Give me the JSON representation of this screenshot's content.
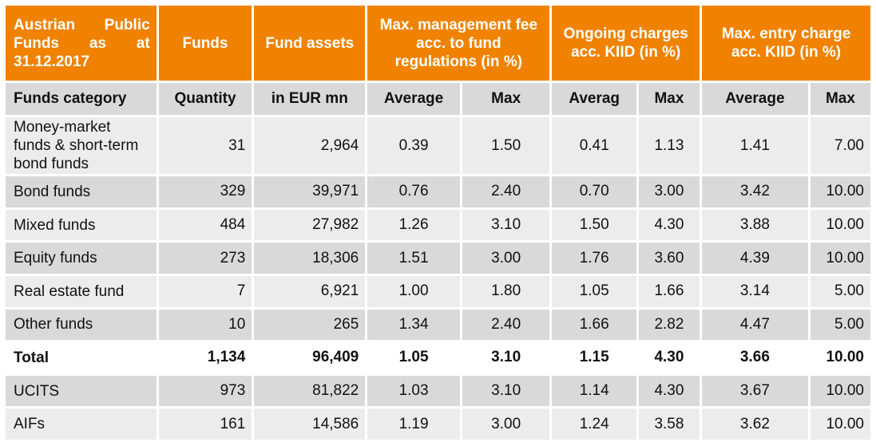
{
  "header": {
    "title": "Austrian Public Funds as at 31.12.2017",
    "funds": "Funds",
    "fund_assets": "Fund assets",
    "mgmt_fee": "Max. management fee acc. to fund regulations (in %)",
    "ongoing": "Ongoing charges acc. KIID (in %)",
    "entry": "Max. entry charge acc. KIID (in %)"
  },
  "subheader": {
    "category": "Funds category",
    "quantity": "Quantity",
    "assets_unit": "in EUR mn",
    "mgmt_avg": "Average",
    "mgmt_max": "Max",
    "ong_avg": "Averag",
    "ong_max": "Max",
    "entry_avg": "Average",
    "entry_max": "Max"
  },
  "rows": [
    {
      "category": "Money-market funds & short-term bond funds",
      "quantity": "31",
      "assets": "2,964",
      "mgmt_avg": "0.39",
      "mgmt_max": "1.50",
      "ong_avg": "0.41",
      "ong_max": "1.13",
      "entry_avg": "1.41",
      "entry_max": "7.00"
    },
    {
      "category": "Bond funds",
      "quantity": "329",
      "assets": "39,971",
      "mgmt_avg": "0.76",
      "mgmt_max": "2.40",
      "ong_avg": "0.70",
      "ong_max": "3.00",
      "entry_avg": "3.42",
      "entry_max": "10.00"
    },
    {
      "category": "Mixed funds",
      "quantity": "484",
      "assets": "27,982",
      "mgmt_avg": "1.26",
      "mgmt_max": "3.10",
      "ong_avg": "1.50",
      "ong_max": "4.30",
      "entry_avg": "3.88",
      "entry_max": "10.00"
    },
    {
      "category": "Equity funds",
      "quantity": "273",
      "assets": "18,306",
      "mgmt_avg": "1.51",
      "mgmt_max": "3.00",
      "ong_avg": "1.76",
      "ong_max": "3.60",
      "entry_avg": "4.39",
      "entry_max": "10.00"
    },
    {
      "category": "Real estate fund",
      "quantity": "7",
      "assets": "6,921",
      "mgmt_avg": "1.00",
      "mgmt_max": "1.80",
      "ong_avg": "1.05",
      "ong_max": "1.66",
      "entry_avg": "3.14",
      "entry_max": "5.00"
    },
    {
      "category": "Other funds",
      "quantity": "10",
      "assets": "265",
      "mgmt_avg": "1.34",
      "mgmt_max": "2.40",
      "ong_avg": "1.66",
      "ong_max": "2.82",
      "entry_avg": "4.47",
      "entry_max": "5.00"
    },
    {
      "category": "Total",
      "quantity": "1,134",
      "assets": "96,409",
      "mgmt_avg": "1.05",
      "mgmt_max": "3.10",
      "ong_avg": "1.15",
      "ong_max": "4.30",
      "entry_avg": "3.66",
      "entry_max": "10.00"
    },
    {
      "category": "UCITS",
      "quantity": "973",
      "assets": "81,822",
      "mgmt_avg": "1.03",
      "mgmt_max": "3.10",
      "ong_avg": "1.14",
      "ong_max": "4.30",
      "entry_avg": "3.67",
      "entry_max": "10.00"
    },
    {
      "category": "AIFs",
      "quantity": "161",
      "assets": "14,586",
      "mgmt_avg": "1.19",
      "mgmt_max": "3.00",
      "ong_avg": "1.24",
      "ong_max": "3.58",
      "entry_avg": "3.62",
      "entry_max": "10.00"
    }
  ],
  "colors": {
    "header_orange": "#f08200",
    "row_grey": "#d9d9d9",
    "row_light": "#ececec"
  }
}
